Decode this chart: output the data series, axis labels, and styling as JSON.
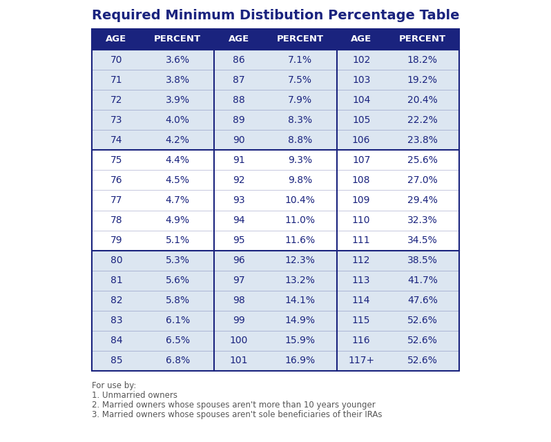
{
  "title": "Required Minimum Distibution Percentage Table",
  "title_color": "#1a237e",
  "title_fontsize": 14,
  "header_bg": "#1a237e",
  "header_text_color": "#ffffff",
  "header_labels": [
    "AGE",
    "PERCENT",
    "AGE",
    "PERCENT",
    "AGE",
    "PERCENT"
  ],
  "row_bg_light": "#dce6f1",
  "row_bg_white": "#ffffff",
  "cell_text_color": "#1a237e",
  "border_color": "#1a237e",
  "col1_data": [
    [
      "70",
      "3.6%"
    ],
    [
      "71",
      "3.8%"
    ],
    [
      "72",
      "3.9%"
    ],
    [
      "73",
      "4.0%"
    ],
    [
      "74",
      "4.2%"
    ],
    [
      "75",
      "4.4%"
    ],
    [
      "76",
      "4.5%"
    ],
    [
      "77",
      "4.7%"
    ],
    [
      "78",
      "4.9%"
    ],
    [
      "79",
      "5.1%"
    ],
    [
      "80",
      "5.3%"
    ],
    [
      "81",
      "5.6%"
    ],
    [
      "82",
      "5.8%"
    ],
    [
      "83",
      "6.1%"
    ],
    [
      "84",
      "6.5%"
    ],
    [
      "85",
      "6.8%"
    ]
  ],
  "col2_data": [
    [
      "86",
      "7.1%"
    ],
    [
      "87",
      "7.5%"
    ],
    [
      "88",
      "7.9%"
    ],
    [
      "89",
      "8.3%"
    ],
    [
      "90",
      "8.8%"
    ],
    [
      "91",
      "9.3%"
    ],
    [
      "92",
      "9.8%"
    ],
    [
      "93",
      "10.4%"
    ],
    [
      "94",
      "11.0%"
    ],
    [
      "95",
      "11.6%"
    ],
    [
      "96",
      "12.3%"
    ],
    [
      "97",
      "13.2%"
    ],
    [
      "98",
      "14.1%"
    ],
    [
      "99",
      "14.9%"
    ],
    [
      "100",
      "15.9%"
    ],
    [
      "101",
      "16.9%"
    ]
  ],
  "col3_data": [
    [
      "102",
      "18.2%"
    ],
    [
      "103",
      "19.2%"
    ],
    [
      "104",
      "20.4%"
    ],
    [
      "105",
      "22.2%"
    ],
    [
      "106",
      "23.8%"
    ],
    [
      "107",
      "25.6%"
    ],
    [
      "108",
      "27.0%"
    ],
    [
      "109",
      "29.4%"
    ],
    [
      "110",
      "32.3%"
    ],
    [
      "111",
      "34.5%"
    ],
    [
      "112",
      "38.5%"
    ],
    [
      "113",
      "41.7%"
    ],
    [
      "114",
      "47.6%"
    ],
    [
      "115",
      "52.6%"
    ],
    [
      "116",
      "52.6%"
    ],
    [
      "117+",
      "52.6%"
    ]
  ],
  "group_sizes": [
    5,
    5,
    6
  ],
  "footnotes": [
    "For use by:",
    "1. Unmarried owners",
    "2. Married owners whose spouses aren't more than 10 years younger",
    "3. Married owners whose spouses aren't sole beneficiaries of their IRAs"
  ],
  "footnote_color": "#555555",
  "footnote_fontsize": 8.5
}
